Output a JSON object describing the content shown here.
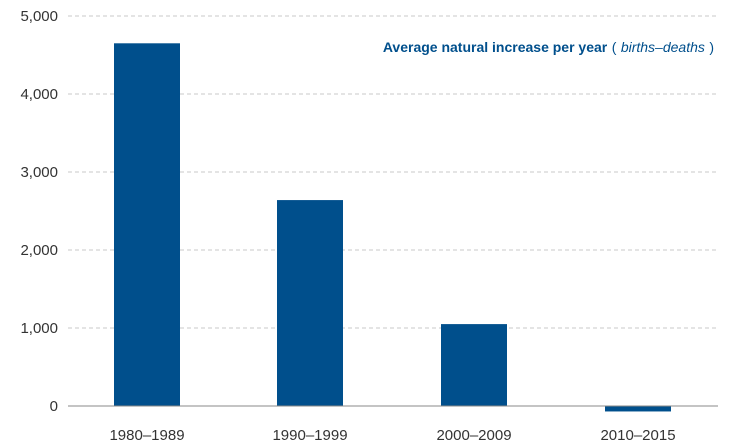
{
  "chart_data": {
    "type": "bar",
    "categories": [
      "1980–1989",
      "1990–1999",
      "2000–2009",
      "2010–2015"
    ],
    "series": [
      {
        "name": "Average natural increase per year",
        "values": [
          4650,
          2640,
          1050,
          -70
        ]
      }
    ],
    "legend": {
      "title": "Average natural increase per year",
      "subtitle": "births–deaths",
      "placement": "top-right"
    },
    "ylim": [
      0,
      5000
    ],
    "yticks": [
      0,
      1000,
      2000,
      3000,
      4000,
      5000
    ],
    "ytick_labels": [
      "0",
      "1,000",
      "2,000",
      "3,000",
      "4,000",
      "5,000"
    ],
    "grid": true,
    "colors": {
      "bar": "#004f8c",
      "legend_title": "#004f8c",
      "legend_subtitle": "#004f8c",
      "grid": "#c8c8c8",
      "axis": "#888888"
    }
  }
}
